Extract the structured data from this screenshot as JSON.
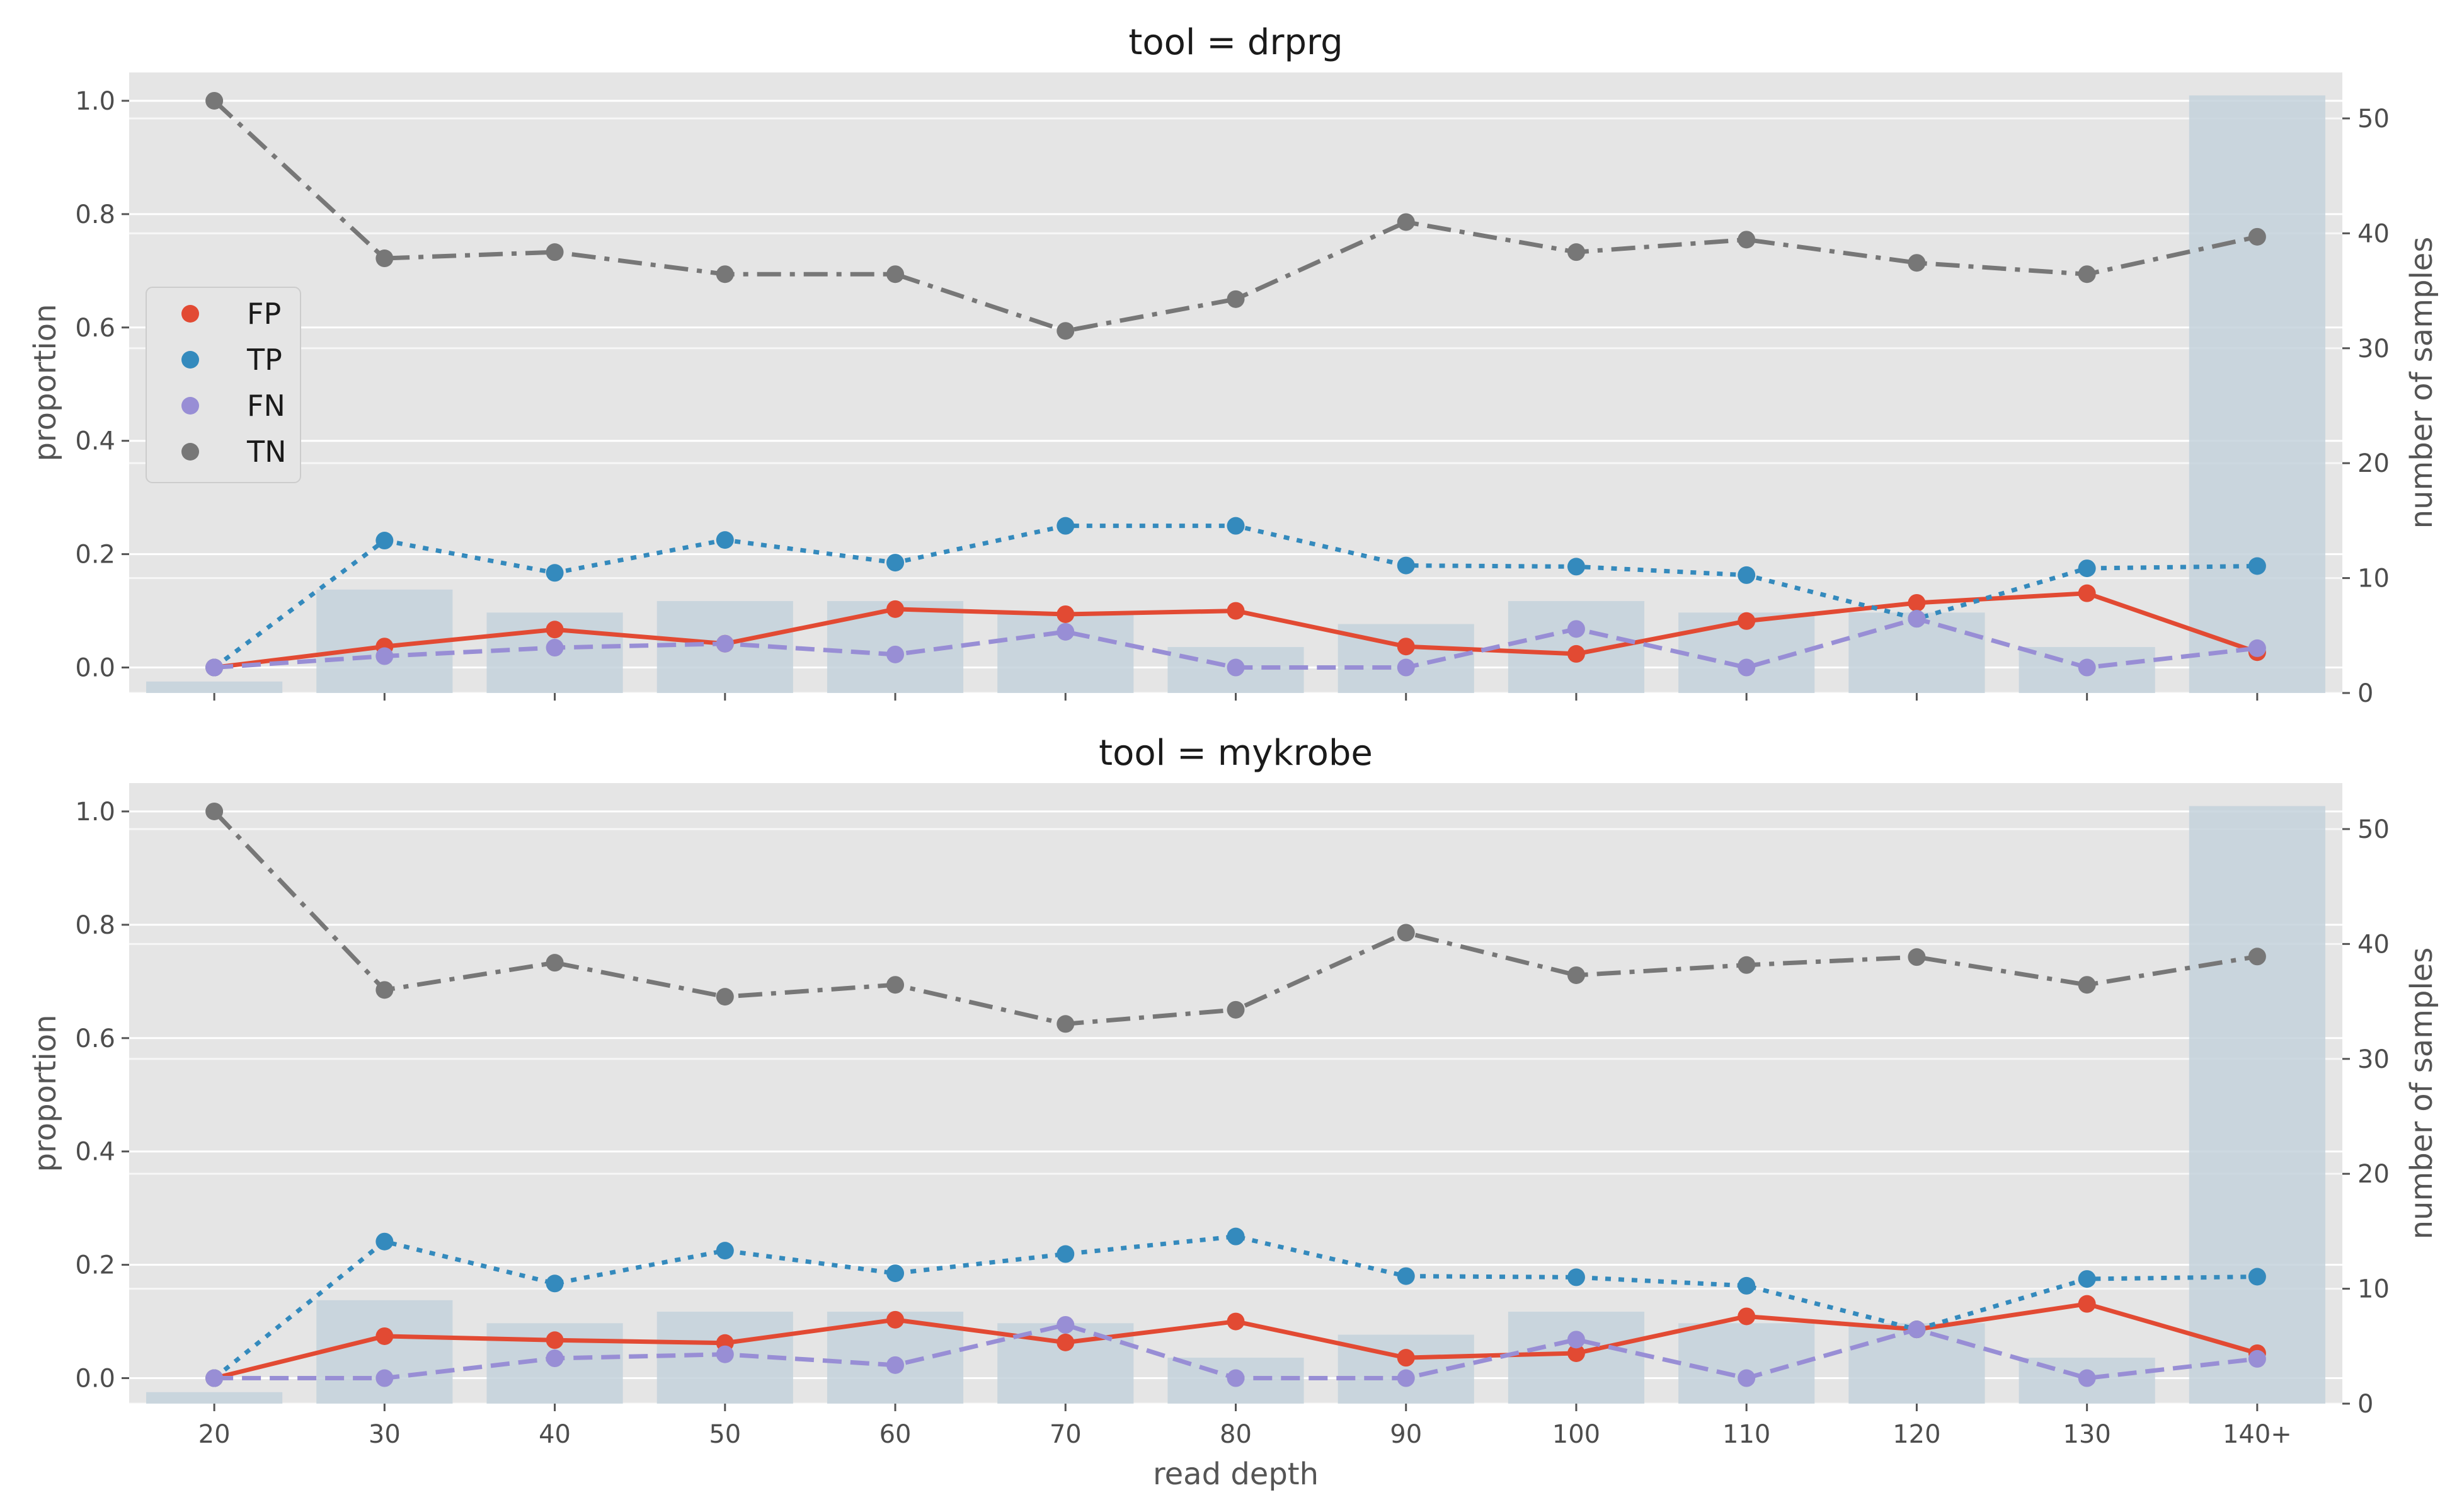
{
  "chart_data": [
    {
      "type": "line",
      "title": "tool = drprg",
      "xlabel": "",
      "ylabel": "proportion",
      "y2label": "number of samples",
      "categories": [
        "20",
        "30",
        "40",
        "50",
        "60",
        "70",
        "80",
        "90",
        "100",
        "110",
        "120",
        "130",
        "140+"
      ],
      "ylim": [
        -0.045,
        1.05
      ],
      "y2lim": [
        0,
        54
      ],
      "yticks": [
        "0.0",
        "0.2",
        "0.4",
        "0.6",
        "0.8",
        "1.0"
      ],
      "y2ticks": [
        "0",
        "10",
        "20",
        "30",
        "40",
        "50"
      ],
      "grid": true,
      "legend": "center-left",
      "bars": {
        "name": "number of samples",
        "values": [
          1,
          9,
          7,
          8,
          8,
          7,
          4,
          6,
          8,
          7,
          7,
          4,
          52
        ],
        "color": "#c4d2dc"
      },
      "series": [
        {
          "name": "FP",
          "color": "#E24A33",
          "dash": "solid",
          "values": [
            0.0,
            0.037,
            0.067,
            0.042,
            0.103,
            0.094,
            0.1,
            0.037,
            0.024,
            0.082,
            0.114,
            0.131,
            0.027
          ]
        },
        {
          "name": "TP",
          "color": "#348ABD",
          "dash": "dotted",
          "values": [
            0.0,
            0.224,
            0.167,
            0.225,
            0.185,
            0.25,
            0.25,
            0.18,
            0.178,
            0.163,
            0.086,
            0.175,
            0.179
          ]
        },
        {
          "name": "FN",
          "color": "#988ED5",
          "dash": "dashed",
          "values": [
            0.0,
            0.02,
            0.035,
            0.042,
            0.023,
            0.063,
            0.0,
            0.0,
            0.068,
            0.0,
            0.086,
            0.0,
            0.034
          ]
        },
        {
          "name": "TN",
          "color": "#777777",
          "dash": "dashdot",
          "values": [
            1.0,
            0.722,
            0.733,
            0.694,
            0.694,
            0.594,
            0.65,
            0.786,
            0.733,
            0.755,
            0.714,
            0.694,
            0.76
          ]
        }
      ]
    },
    {
      "type": "line",
      "title": "tool = mykrobe",
      "xlabel": "read depth",
      "ylabel": "proportion",
      "y2label": "number of samples",
      "categories": [
        "20",
        "30",
        "40",
        "50",
        "60",
        "70",
        "80",
        "90",
        "100",
        "110",
        "120",
        "130",
        "140+"
      ],
      "ylim": [
        -0.045,
        1.05
      ],
      "y2lim": [
        0,
        54
      ],
      "yticks": [
        "0.0",
        "0.2",
        "0.4",
        "0.6",
        "0.8",
        "1.0"
      ],
      "y2ticks": [
        "0",
        "10",
        "20",
        "30",
        "40",
        "50"
      ],
      "grid": true,
      "legend": "none",
      "bars": {
        "name": "number of samples",
        "values": [
          1,
          9,
          7,
          8,
          8,
          7,
          4,
          6,
          8,
          7,
          7,
          4,
          52
        ],
        "color": "#c4d2dc"
      },
      "series": [
        {
          "name": "FP",
          "color": "#E24A33",
          "dash": "solid",
          "values": [
            0.0,
            0.074,
            0.067,
            0.062,
            0.103,
            0.063,
            0.1,
            0.036,
            0.044,
            0.109,
            0.086,
            0.131,
            0.044
          ]
        },
        {
          "name": "TP",
          "color": "#348ABD",
          "dash": "dotted",
          "values": [
            0.0,
            0.241,
            0.167,
            0.225,
            0.185,
            0.219,
            0.25,
            0.18,
            0.178,
            0.163,
            0.086,
            0.175,
            0.179
          ]
        },
        {
          "name": "FN",
          "color": "#988ED5",
          "dash": "dashed",
          "values": [
            0.0,
            0.0,
            0.035,
            0.042,
            0.023,
            0.094,
            0.0,
            0.0,
            0.068,
            0.0,
            0.086,
            0.0,
            0.034
          ]
        },
        {
          "name": "TN",
          "color": "#777777",
          "dash": "dashdot",
          "values": [
            1.0,
            0.685,
            0.733,
            0.673,
            0.694,
            0.625,
            0.65,
            0.786,
            0.711,
            0.729,
            0.743,
            0.694,
            0.744
          ]
        }
      ]
    }
  ]
}
